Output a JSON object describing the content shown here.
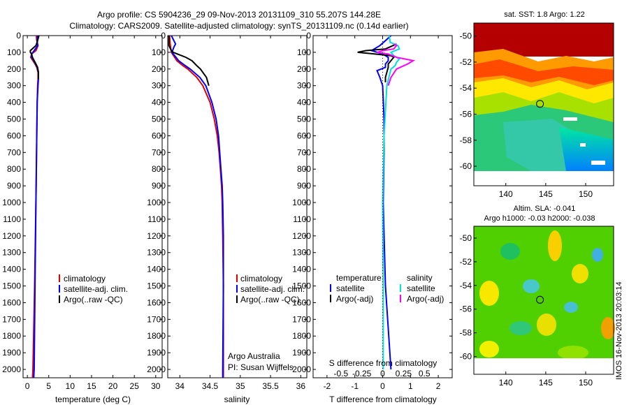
{
  "title_line1": "Argo profile: CS 5904236_29 09-Nov-2013 20131109_310 55.207S 144.28E",
  "title_line2": "Climatology: CARS2009. Satellite-adjusted climatology: synTS_20131109.nc (0.14d earlier)",
  "colors": {
    "clim": "#e00000",
    "sat": "#0000ff",
    "argo": "#000000",
    "sat_sal": "#00e0e0",
    "argo_sal": "#ff00ff"
  },
  "depth_axis": {
    "min": 0,
    "max": 2050,
    "ticks": [
      0,
      100,
      200,
      300,
      400,
      500,
      600,
      700,
      800,
      900,
      1000,
      1100,
      1200,
      1300,
      1400,
      1500,
      1600,
      1700,
      1800,
      1900,
      2000
    ]
  },
  "credit": {
    "line1": "Argo Australia",
    "line2": "PI: Susan Wijffels"
  },
  "timestamp": "IMOS 16-Nov-2013 20:03:14",
  "chart_data": [
    {
      "type": "line",
      "xlabel": "temperature (deg C)",
      "xlim": [
        -1,
        31.5
      ],
      "xticks": [
        0,
        5,
        10,
        15,
        20,
        25,
        30
      ],
      "legend": [
        "climatology",
        "satellite-adj. clim.",
        "Argo(..raw -QC)"
      ],
      "series": [
        {
          "name": "climatology",
          "depth": [
            0,
            30,
            60,
            90,
            110,
            130,
            150,
            170,
            190,
            220,
            260,
            300,
            400,
            600,
            800,
            1000,
            1500,
            2000,
            2050
          ],
          "values": [
            2.1,
            2.2,
            2.5,
            2.0,
            1.0,
            0.8,
            1.3,
            1.8,
            2.2,
            2.5,
            2.5,
            2.4,
            2.3,
            2.2,
            2.1,
            2.0,
            1.7,
            1.3,
            1.2
          ]
        },
        {
          "name": "satellite-adj. clim.",
          "depth": [
            0,
            30,
            60,
            90,
            110,
            130,
            150,
            170,
            190,
            220,
            260,
            300,
            400,
            600,
            800,
            1000,
            1500,
            2000,
            2050
          ],
          "values": [
            2.4,
            2.3,
            2.4,
            1.6,
            1.0,
            1.0,
            1.5,
            1.9,
            2.3,
            2.6,
            2.6,
            2.5,
            2.3,
            2.2,
            2.1,
            2.0,
            1.8,
            1.6,
            1.5
          ]
        },
        {
          "name": "Argo(..raw -QC)",
          "depth": [
            0,
            30,
            60,
            90,
            100,
            110,
            130,
            150,
            170,
            190,
            220,
            260
          ],
          "values": [
            2.7,
            2.4,
            2.0,
            0.7,
            0.7,
            1.0,
            1.2,
            1.6,
            2.0,
            2.4,
            2.6,
            2.6
          ]
        }
      ]
    },
    {
      "type": "line",
      "xlabel": "salinity",
      "xlim": [
        33.8,
        36.1
      ],
      "xticks": [
        34,
        34.5,
        35,
        35.5,
        36
      ],
      "xtick_labels": [
        "34",
        "34.5",
        "35",
        "35.5",
        "36"
      ],
      "legend": [
        "climatology",
        "satellite-adj. clim.",
        "Argo(..raw -QC)"
      ],
      "series": [
        {
          "name": "climatology",
          "depth": [
            0,
            50,
            100,
            150,
            180,
            200,
            250,
            300,
            400,
            500,
            600,
            700,
            800,
            900,
            1000,
            1200,
            1500,
            2000,
            2050
          ],
          "values": [
            33.83,
            33.84,
            33.86,
            33.95,
            34.05,
            34.13,
            34.28,
            34.38,
            34.5,
            34.57,
            34.62,
            34.65,
            34.67,
            34.69,
            34.7,
            34.71,
            34.72,
            34.72,
            34.72
          ]
        },
        {
          "name": "satellite-adj. clim.",
          "depth": [
            0,
            50,
            70,
            100,
            150,
            180,
            200,
            250,
            300,
            400,
            500,
            600,
            700,
            800,
            900,
            1000,
            1200,
            1500,
            2000,
            2050
          ],
          "values": [
            33.86,
            33.93,
            33.9,
            33.87,
            33.98,
            34.09,
            34.17,
            34.33,
            34.43,
            34.53,
            34.6,
            34.64,
            34.66,
            34.68,
            34.7,
            34.71,
            34.72,
            34.72,
            34.71,
            34.71
          ]
        },
        {
          "name": "Argo(..raw -QC)",
          "depth": [
            0,
            60,
            90,
            100,
            110,
            130,
            150,
            180,
            200,
            250,
            300
          ],
          "values": [
            33.82,
            33.82,
            33.86,
            33.89,
            33.96,
            34.1,
            34.2,
            34.28,
            34.34,
            34.44,
            34.48
          ]
        }
      ]
    },
    {
      "type": "line",
      "xlabel": "T difference from climatology",
      "xlabel_top": "S difference from climatology",
      "xlim": [
        -2.5,
        2.5
      ],
      "xticks": [
        -2,
        -1,
        0,
        1,
        2
      ],
      "sticks_pos": [
        -1.5,
        -0.75,
        0,
        0.75,
        1.5
      ],
      "sticks_labels": [
        "-0.5",
        "-0.25",
        "0",
        "0.25",
        "0.5"
      ],
      "legend_temp_title": "temperature",
      "legend_sal_title": "salinity",
      "legend_temp": [
        "satellite",
        "Argo(-adj)"
      ],
      "legend_sal": [
        "satellite",
        "Argo(-adj)"
      ],
      "series": [
        {
          "name": "satellite",
          "depth": [
            0,
            30,
            60,
            90,
            110,
            130,
            150,
            170,
            190,
            210,
            250,
            300,
            500,
            700,
            1000,
            1500,
            2000
          ],
          "values": [
            0.3,
            0.1,
            -0.1,
            -0.4,
            0.0,
            0.2,
            0.2,
            0.1,
            0.1,
            -0.2,
            -0.1,
            0.0,
            0.05,
            0.05,
            0.02,
            0.1,
            0.3
          ]
        },
        {
          "name": "Argo(-adj)",
          "depth": [
            50,
            80,
            90,
            100,
            110,
            120,
            130,
            150,
            170,
            190,
            220,
            250,
            280
          ],
          "values": [
            0.5,
            0.1,
            -0.6,
            -0.9,
            -0.3,
            0.3,
            0.4,
            0.3,
            0.2,
            0.2,
            0.15,
            0.1,
            0.1
          ]
        },
        {
          "name": "satellite",
          "depth": [
            0,
            40,
            60,
            80,
            100,
            120,
            140,
            160,
            180,
            200,
            300,
            600,
            1000,
            1500,
            2000
          ],
          "values": [
            0.24,
            0.27,
            0.55,
            0.6,
            0.3,
            0.4,
            0.6,
            0.5,
            0.45,
            0.3,
            0.15,
            0.05,
            0.0,
            0.02,
            0.02
          ]
        },
        {
          "name": "Argo(-adj)",
          "depth": [
            50,
            60,
            80,
            90,
            100,
            110,
            130,
            150,
            170,
            200,
            250,
            300
          ],
          "values": [
            0.4,
            0.5,
            0.4,
            0.0,
            -0.2,
            0.2,
            0.5,
            1.1,
            0.9,
            0.5,
            0.3,
            0.2
          ]
        }
      ]
    },
    {
      "type": "heatmap",
      "title": "sat. SST: 1.8 Argo: 1.22",
      "xlim": [
        136,
        153.5
      ],
      "ylim": [
        -61.5,
        -49
      ],
      "xticks": [
        140,
        145,
        150
      ],
      "yticks": [
        -50,
        -52,
        -54,
        -56,
        -58,
        -60
      ],
      "marker": [
        144.28,
        -55.207
      ]
    },
    {
      "type": "heatmap",
      "title": "Altim. SLA: -0.041",
      "subtitle": "Argo h1000: -0.03 h2000: -0.038",
      "xlim": [
        136,
        153.5
      ],
      "ylim": [
        -61.5,
        -49
      ],
      "xticks": [
        140,
        145,
        150
      ],
      "yticks": [
        -50,
        -52,
        -54,
        -56,
        -58,
        -60
      ],
      "marker": [
        144.28,
        -55.207
      ]
    }
  ]
}
